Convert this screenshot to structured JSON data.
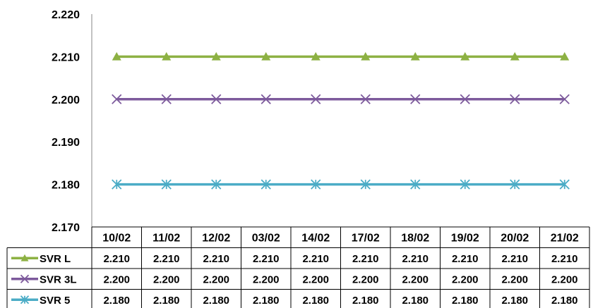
{
  "chart_data": {
    "type": "line",
    "categories": [
      "10/02",
      "11/02",
      "12/02",
      "03/02",
      "14/02",
      "17/02",
      "18/02",
      "19/02",
      "20/02",
      "21/02"
    ],
    "series": [
      {
        "name": "SVR L",
        "color": "#8db143",
        "marker": "triangle",
        "values": [
          2.21,
          2.21,
          2.21,
          2.21,
          2.21,
          2.21,
          2.21,
          2.21,
          2.21,
          2.21
        ],
        "labels": [
          "2.210",
          "2.210",
          "2.210",
          "2.210",
          "2.210",
          "2.210",
          "2.210",
          "2.210",
          "2.210",
          "2.210"
        ]
      },
      {
        "name": "SVR 3L",
        "color": "#7d5a9c",
        "marker": "x",
        "values": [
          2.2,
          2.2,
          2.2,
          2.2,
          2.2,
          2.2,
          2.2,
          2.2,
          2.2,
          2.2
        ],
        "labels": [
          "2.200",
          "2.200",
          "2.200",
          "2.200",
          "2.200",
          "2.200",
          "2.200",
          "2.200",
          "2.200",
          "2.200"
        ]
      },
      {
        "name": "SVR 5",
        "color": "#4bacc6",
        "marker": "star",
        "values": [
          2.18,
          2.18,
          2.18,
          2.18,
          2.18,
          2.18,
          2.18,
          2.18,
          2.18,
          2.18
        ],
        "labels": [
          "2.180",
          "2.180",
          "2.180",
          "2.180",
          "2.180",
          "2.180",
          "2.180",
          "2.180",
          "2.180",
          "2.180"
        ]
      }
    ],
    "ylim": [
      2.17,
      2.22
    ],
    "yticks": [
      "2.170",
      "2.180",
      "2.190",
      "2.200",
      "2.210",
      "2.220"
    ],
    "grid": false,
    "legend": "data-table-left",
    "title": "",
    "xlabel": "",
    "ylabel": ""
  }
}
